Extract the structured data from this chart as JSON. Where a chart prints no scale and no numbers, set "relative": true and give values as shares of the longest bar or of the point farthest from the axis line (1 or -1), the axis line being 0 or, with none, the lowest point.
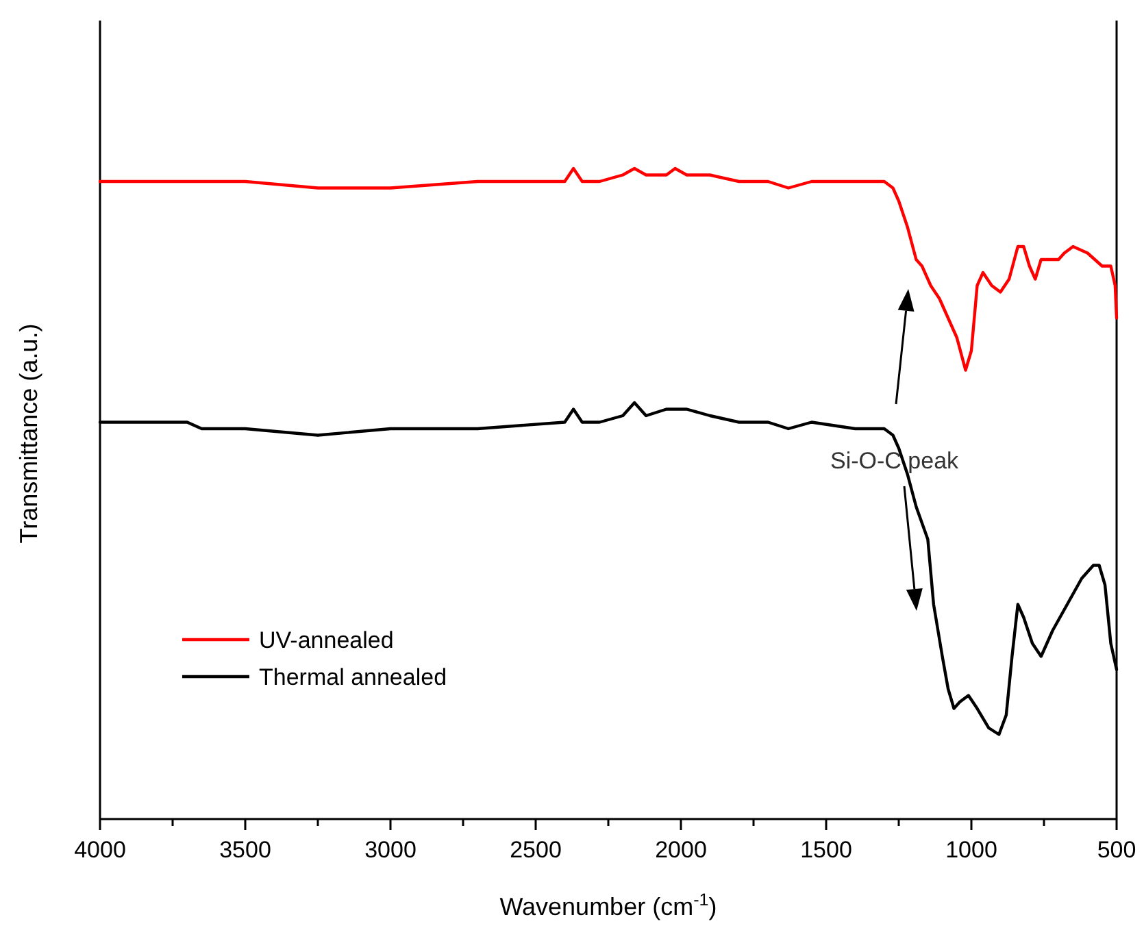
{
  "chart_data": {
    "type": "line",
    "xlabel": "Wavenumber (cm$^{-1}$)",
    "ylabel": "Transmittance (a.u.)",
    "relative": true,
    "xlim": [
      4000,
      500
    ],
    "xticks": [
      4000,
      {
        "value": 3750,
        "label": null
      },
      3500,
      {
        "value": 3250,
        "label": null
      },
      3000,
      {
        "value": 2750,
        "label": null
      },
      2500,
      {
        "value": 2250,
        "label": null
      },
      2000,
      {
        "value": 1750,
        "label": null
      },
      1500,
      {
        "value": 1250,
        "label": null
      },
      1000,
      {
        "value": 750,
        "label": null
      },
      500
    ],
    "x": [
      4000,
      3700,
      3500,
      3250,
      3000,
      2700,
      2400,
      2370,
      2340,
      2280,
      2200,
      2160,
      2120,
      2050,
      2020,
      1980,
      1900,
      1800,
      1700,
      1630,
      1550,
      1400,
      1300,
      1270,
      1250,
      1220,
      1190,
      1170,
      1140,
      1110,
      1080,
      1050,
      1020,
      1000,
      980,
      960,
      930,
      900,
      870,
      840,
      820,
      800,
      780,
      760,
      730,
      700,
      680,
      650,
      600,
      550,
      520,
      505,
      500
    ],
    "series": [
      {
        "name": "UV-annealed",
        "color": "#ff0000",
        "values": [
          0.98,
          0.98,
          0.98,
          0.97,
          0.97,
          0.98,
          0.98,
          1.0,
          0.98,
          0.98,
          0.99,
          1.0,
          0.99,
          0.99,
          1.0,
          0.99,
          0.99,
          0.98,
          0.98,
          0.97,
          0.98,
          0.98,
          0.98,
          0.97,
          0.95,
          0.91,
          0.86,
          0.85,
          0.82,
          0.8,
          0.77,
          0.74,
          0.69,
          0.72,
          0.82,
          0.84,
          0.82,
          0.81,
          0.83,
          0.88,
          0.88,
          0.85,
          0.83,
          0.86,
          0.86,
          0.86,
          0.87,
          0.88,
          0.87,
          0.85,
          0.85,
          0.82,
          0.77
        ]
      },
      {
        "name": "Thermal annealed",
        "color": "#000000",
        "x": [
          4000,
          3700,
          3650,
          3500,
          3250,
          3000,
          2700,
          2400,
          2370,
          2340,
          2280,
          2200,
          2160,
          2120,
          2050,
          2020,
          1980,
          1900,
          1800,
          1700,
          1630,
          1550,
          1400,
          1300,
          1270,
          1250,
          1220,
          1190,
          1150,
          1130,
          1100,
          1080,
          1060,
          1040,
          1010,
          980,
          940,
          905,
          880,
          860,
          840,
          820,
          790,
          760,
          720,
          670,
          620,
          580,
          560,
          540,
          520,
          500
        ],
        "values": [
          0.61,
          0.61,
          0.6,
          0.6,
          0.59,
          0.6,
          0.6,
          0.61,
          0.63,
          0.61,
          0.61,
          0.62,
          0.64,
          0.62,
          0.63,
          0.63,
          0.63,
          0.62,
          0.61,
          0.61,
          0.6,
          0.61,
          0.6,
          0.6,
          0.59,
          0.57,
          0.53,
          0.48,
          0.43,
          0.33,
          0.25,
          0.2,
          0.17,
          0.18,
          0.19,
          0.17,
          0.14,
          0.13,
          0.16,
          0.25,
          0.33,
          0.31,
          0.27,
          0.25,
          0.29,
          0.33,
          0.37,
          0.39,
          0.39,
          0.36,
          0.27,
          0.23
        ]
      }
    ],
    "annotations": [
      "Si-O-C peak"
    ],
    "legend": "bottom left",
    "line_style": "solid",
    "marker": "none",
    "grid": false
  }
}
